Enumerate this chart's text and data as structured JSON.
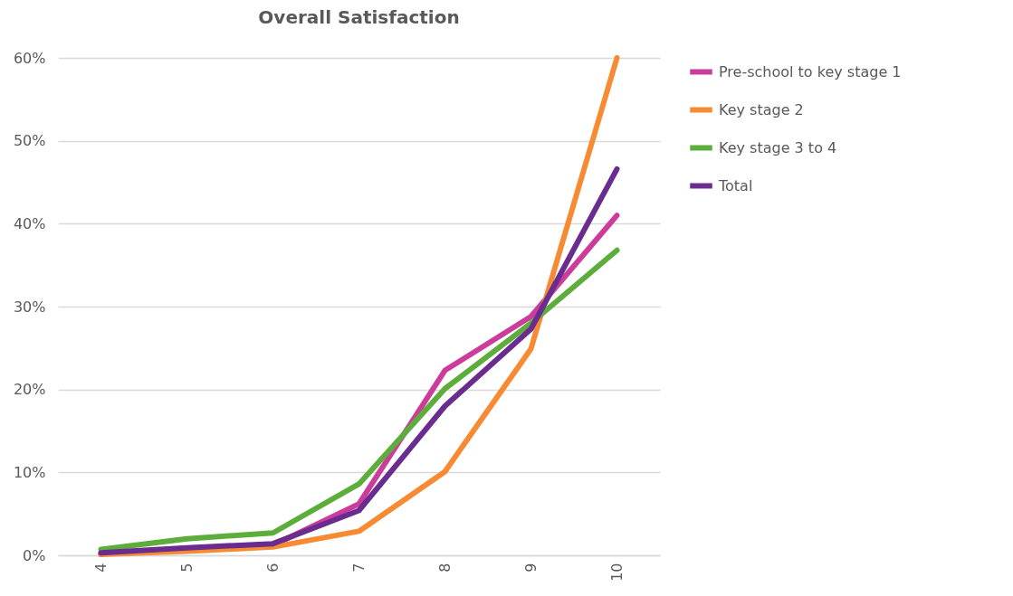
{
  "chart_data": {
    "type": "line",
    "title": "Overall Satisfaction",
    "categories": [
      "4",
      "5",
      "6",
      "7",
      "8",
      "9",
      "10"
    ],
    "series": [
      {
        "name": "Pre-school to key stage 1",
        "color": "#cc3d9b",
        "values": [
          0.2,
          0.6,
          1.2,
          6.2,
          22.3,
          28.8,
          41.0
        ]
      },
      {
        "name": "Key stage 2",
        "color": "#f68b33",
        "values": [
          0.1,
          0.5,
          1.0,
          2.9,
          10.1,
          24.9,
          60.0
        ]
      },
      {
        "name": "Key stage 3 to 4",
        "color": "#5cad3c",
        "values": [
          0.7,
          2.0,
          2.7,
          8.6,
          20.1,
          28.0,
          36.8
        ]
      },
      {
        "name": "Total",
        "color": "#6a2c8e",
        "values": [
          0.3,
          0.9,
          1.4,
          5.4,
          18.0,
          27.3,
          46.6
        ]
      }
    ],
    "ylim": [
      0,
      60
    ],
    "yticks": [
      {
        "value": 0,
        "label": "0%"
      },
      {
        "value": 10,
        "label": "10%"
      },
      {
        "value": 20,
        "label": "20%"
      },
      {
        "value": 30,
        "label": "30%"
      },
      {
        "value": 40,
        "label": "40%"
      },
      {
        "value": 50,
        "label": "50%"
      },
      {
        "value": 60,
        "label": "60%"
      }
    ],
    "grid": "y",
    "legend": "right",
    "marker": "none",
    "line_style": "solid"
  }
}
